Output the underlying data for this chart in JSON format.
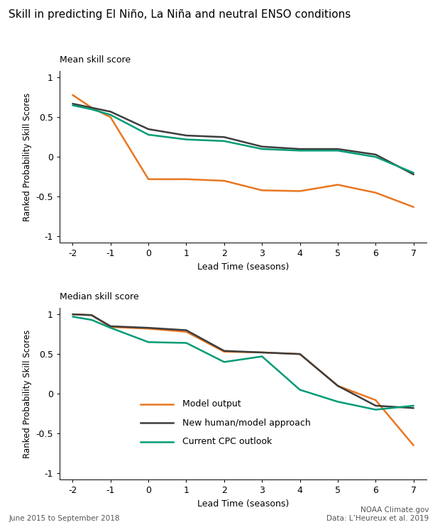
{
  "title": "Skill in predicting El Niño, La Niña and neutral ENSO conditions",
  "x": [
    -2,
    -1.5,
    -1,
    0,
    1,
    2,
    3,
    4,
    5,
    6,
    7
  ],
  "mean": {
    "model": [
      0.78,
      0.62,
      0.5,
      -0.28,
      -0.28,
      -0.3,
      -0.42,
      -0.43,
      -0.35,
      -0.45,
      -0.63
    ],
    "human_model": [
      0.67,
      0.62,
      0.57,
      0.35,
      0.27,
      0.25,
      0.13,
      0.1,
      0.1,
      0.03,
      -0.22
    ],
    "cpc": [
      0.65,
      0.6,
      0.53,
      0.28,
      0.22,
      0.2,
      0.1,
      0.08,
      0.08,
      0.0,
      -0.2
    ]
  },
  "median": {
    "model": [
      1.0,
      0.99,
      0.84,
      0.82,
      0.78,
      0.53,
      0.52,
      0.5,
      0.1,
      -0.08,
      -0.65
    ],
    "human_model": [
      1.0,
      0.99,
      0.85,
      0.83,
      0.8,
      0.54,
      0.52,
      0.5,
      0.1,
      -0.15,
      -0.18
    ],
    "cpc": [
      0.97,
      0.93,
      0.83,
      0.65,
      0.64,
      0.4,
      0.47,
      0.05,
      -0.1,
      -0.2,
      -0.15
    ]
  },
  "colors": {
    "model": "#E87722",
    "human_model": "#3d3d3d",
    "cpc": "#009B77"
  },
  "legend_labels": [
    "Model output",
    "New human/model approach",
    "Current CPC outlook"
  ],
  "ylabel": "Ranked Probability Skill Scores",
  "xlabel": "Lead Time (seasons)",
  "mean_label": "Mean skill score",
  "median_label": "Median skill score",
  "footnote_left": "June 2015 to September 2018",
  "footnote_right": "NOAA Climate.gov\nData: L’Heureux et al. 2019",
  "xticks": [
    -2,
    -1,
    0,
    1,
    2,
    3,
    4,
    5,
    6,
    7
  ],
  "yticks": [
    -1,
    -0.5,
    0,
    0.5,
    1
  ],
  "yticklabels": [
    "-1",
    "-0.5",
    "0",
    "0.5",
    "1"
  ],
  "linewidth": 1.8
}
